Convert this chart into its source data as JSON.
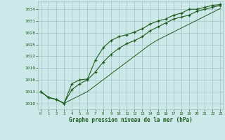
{
  "xlabel": "Graphe pression niveau de la mer (hPa)",
  "bg_color": "#cce8e8",
  "grid_color": "#a0c4c4",
  "line_color": "#1e5c1e",
  "x_ticks": [
    0,
    1,
    2,
    3,
    4,
    5,
    6,
    7,
    8,
    9,
    10,
    11,
    12,
    13,
    14,
    15,
    16,
    17,
    18,
    19,
    20,
    21,
    22,
    23
  ],
  "y_ticks": [
    1010,
    1013,
    1016,
    1019,
    1022,
    1025,
    1028,
    1031,
    1034
  ],
  "ylim": [
    1008.5,
    1036.0
  ],
  "xlim": [
    -0.3,
    23.3
  ],
  "series1_y": [
    1013,
    1011.5,
    1011.0,
    1010.0,
    1015.0,
    1016.0,
    1016.2,
    1021.0,
    1024.2,
    1026.0,
    1027.0,
    1027.5,
    1028.2,
    1029.0,
    1030.2,
    1031.0,
    1031.5,
    1032.5,
    1033.0,
    1034.0,
    1034.0,
    1034.5,
    1035.0,
    1035.2
  ],
  "series2_y": [
    1013,
    1011.5,
    1011.0,
    1010.0,
    1013.5,
    1015.0,
    1016.0,
    1018.0,
    1020.5,
    1022.5,
    1024.0,
    1025.2,
    1026.0,
    1027.0,
    1028.5,
    1029.5,
    1030.5,
    1031.5,
    1032.0,
    1032.5,
    1033.5,
    1034.0,
    1034.5,
    1035.0
  ],
  "series3_y": [
    1013,
    1011.5,
    1011.0,
    1010.0,
    1011.0,
    1012.0,
    1013.0,
    1014.5,
    1016.0,
    1017.5,
    1019.0,
    1020.5,
    1022.0,
    1023.5,
    1025.0,
    1026.2,
    1027.2,
    1028.2,
    1029.2,
    1030.2,
    1031.2,
    1032.2,
    1033.2,
    1034.2
  ]
}
